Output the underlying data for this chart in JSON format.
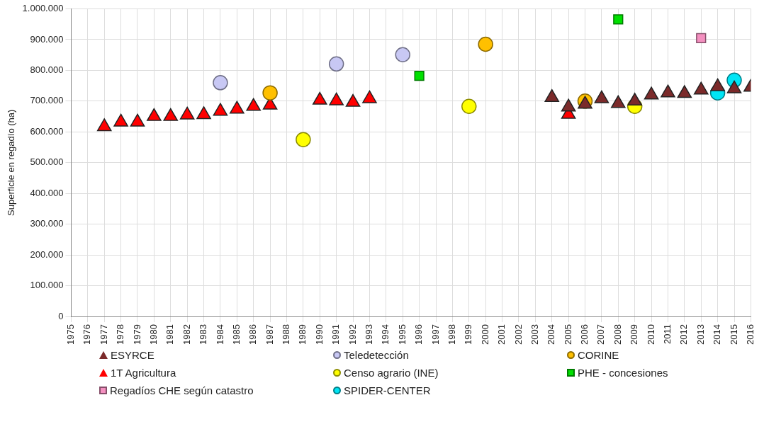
{
  "chart_data": {
    "type": "scatter",
    "ylabel": "Superficie en regadío (ha)",
    "xlim": [
      1975,
      2016
    ],
    "xticks": [
      1975,
      1976,
      1977,
      1978,
      1979,
      1980,
      1981,
      1982,
      1983,
      1984,
      1985,
      1986,
      1987,
      1988,
      1989,
      1990,
      1991,
      1992,
      1993,
      1994,
      1995,
      1996,
      1997,
      1998,
      1999,
      2000,
      2001,
      2002,
      2003,
      2004,
      2005,
      2006,
      2007,
      2008,
      2009,
      2010,
      2011,
      2012,
      2013,
      2014,
      2015,
      2016
    ],
    "ylim": [
      0,
      1000000
    ],
    "yticks": [
      {
        "value": 0,
        "label": "0"
      },
      {
        "value": 100000,
        "label": "100.000"
      },
      {
        "value": 200000,
        "label": "200.000"
      },
      {
        "value": 300000,
        "label": "300.000"
      },
      {
        "value": 400000,
        "label": "400.000"
      },
      {
        "value": 500000,
        "label": "500.000"
      },
      {
        "value": 600000,
        "label": "600.000"
      },
      {
        "value": 700000,
        "label": "700.000"
      },
      {
        "value": 800000,
        "label": "800.000"
      },
      {
        "value": 900000,
        "label": "900.000"
      },
      {
        "value": 1000000,
        "label": "1.000.000"
      }
    ],
    "grid": true,
    "legend": "bottom",
    "series": [
      {
        "name": "ESYRCE",
        "color": "#7b2a2a",
        "marker": "triangle",
        "x": [
          2004,
          2005,
          2006,
          2007,
          2008,
          2009,
          2010,
          2011,
          2012,
          2013,
          2014,
          2015,
          2016
        ],
        "values": [
          712000,
          681000,
          690000,
          708000,
          692000,
          700000,
          720000,
          727000,
          725000,
          736000,
          747000,
          740000,
          745000
        ]
      },
      {
        "name": "Teledetección",
        "color": "#c8c8f4",
        "marker": "circle",
        "x": [
          1984,
          1991,
          1995
        ],
        "values": [
          760000,
          821000,
          851000
        ]
      },
      {
        "name": "CORINE",
        "color": "#ffc000",
        "marker": "circle",
        "x": [
          1987,
          2000,
          2006
        ],
        "values": [
          727000,
          885000,
          700000
        ]
      },
      {
        "name": "1T Agricultura",
        "color": "#ff0000",
        "marker": "triangle",
        "x": [
          1977,
          1978,
          1979,
          1980,
          1981,
          1982,
          1983,
          1984,
          1985,
          1986,
          1987,
          1990,
          1991,
          1992,
          1993,
          2005
        ],
        "values": [
          617000,
          632000,
          632000,
          650000,
          650000,
          655000,
          656000,
          667000,
          674000,
          683000,
          687000,
          703000,
          701000,
          696000,
          708000,
          657000
        ]
      },
      {
        "name": "Censo agrario (INE)",
        "color": "#ffff00",
        "marker": "circle",
        "x": [
          1989,
          1999,
          2009
        ],
        "values": [
          575000,
          683000,
          683000
        ]
      },
      {
        "name": "PHE - concesiones",
        "color": "#00e000",
        "marker": "square",
        "x": [
          1996,
          2008
        ],
        "values": [
          782000,
          966000
        ]
      },
      {
        "name": "Regadíos CHE según catastro",
        "color": "#f490c0",
        "marker": "square",
        "x": [
          2013
        ],
        "values": [
          905000
        ]
      },
      {
        "name": "SPIDER-CENTER",
        "color": "#00e5f5",
        "marker": "circle",
        "x": [
          2014,
          2015
        ],
        "values": [
          727000,
          768000
        ]
      }
    ]
  }
}
